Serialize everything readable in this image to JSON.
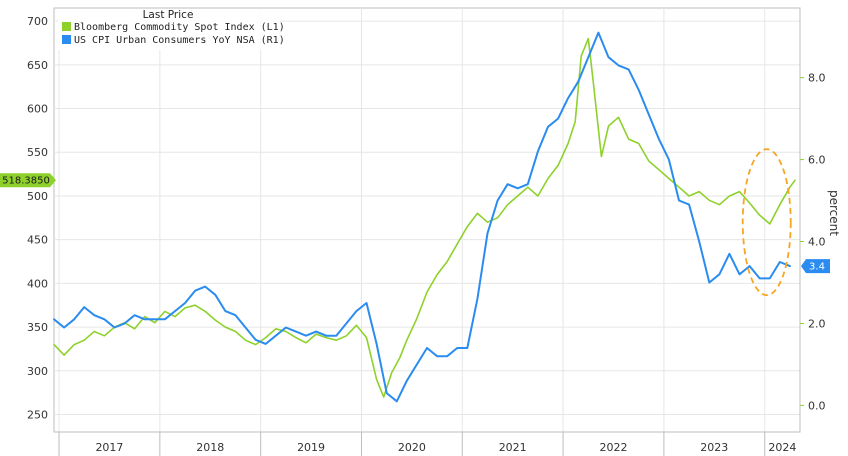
{
  "chart_data": {
    "type": "line",
    "legend": {
      "title": "Last Price",
      "placement": "top-left",
      "entries": [
        {
          "label": "Bloomberg Commodity Spot Index  (L1)",
          "color": "#8ed12a"
        },
        {
          "label": "US CPI Urban Consumers YoY NSA  (R1)",
          "color": "#2a8cf0"
        }
      ]
    },
    "x_labels": [
      "2017",
      "2018",
      "2019",
      "2020",
      "2021",
      "2022",
      "2023",
      "2024"
    ],
    "xlim": [
      2016.95,
      2024.35
    ],
    "left_axis": {
      "ticks": [
        250,
        300,
        350,
        400,
        450,
        500,
        550,
        600,
        650,
        700
      ],
      "ylim": [
        230,
        715
      ]
    },
    "right_axis": {
      "label": "percent",
      "ticks": [
        0.0,
        2.0,
        4.0,
        6.0,
        8.0
      ],
      "tick_labels": [
        "0.0",
        "2.0",
        "4.0",
        "6.0",
        "8.0"
      ],
      "ylim": [
        -0.65,
        9.7
      ]
    },
    "grid": true,
    "last_value_tags": {
      "left": "518.3850",
      "right": "3.4"
    },
    "series": [
      {
        "name": "Bloomberg Commodity Spot Index",
        "axis": "left",
        "color": "#8ed12a",
        "x": [
          2016.95,
          2017.05,
          2017.15,
          2017.25,
          2017.35,
          2017.45,
          2017.55,
          2017.65,
          2017.75,
          2017.85,
          2017.95,
          2018.05,
          2018.15,
          2018.25,
          2018.35,
          2018.45,
          2018.55,
          2018.65,
          2018.75,
          2018.85,
          2018.95,
          2019.05,
          2019.15,
          2019.25,
          2019.35,
          2019.45,
          2019.55,
          2019.65,
          2019.75,
          2019.85,
          2019.95,
          2020.05,
          2020.15,
          2020.22,
          2020.3,
          2020.38,
          2020.45,
          2020.55,
          2020.65,
          2020.75,
          2020.85,
          2020.95,
          2021.05,
          2021.15,
          2021.25,
          2021.35,
          2021.45,
          2021.55,
          2021.65,
          2021.75,
          2021.85,
          2021.95,
          2022.05,
          2022.12,
          2022.18,
          2022.25,
          2022.3,
          2022.38,
          2022.45,
          2022.55,
          2022.65,
          2022.75,
          2022.85,
          2022.95,
          2023.05,
          2023.15,
          2023.25,
          2023.35,
          2023.45,
          2023.55,
          2023.65,
          2023.75,
          2023.85,
          2023.95,
          2024.05,
          2024.15,
          2024.25,
          2024.3
        ],
        "y": [
          330,
          318,
          330,
          335,
          345,
          340,
          350,
          355,
          348,
          362,
          355,
          368,
          362,
          372,
          375,
          368,
          358,
          350,
          345,
          335,
          330,
          338,
          348,
          345,
          338,
          332,
          342,
          338,
          335,
          340,
          352,
          338,
          290,
          270,
          298,
          315,
          335,
          360,
          390,
          410,
          425,
          445,
          465,
          480,
          470,
          475,
          490,
          500,
          510,
          500,
          520,
          535,
          560,
          585,
          660,
          680,
          630,
          545,
          580,
          590,
          565,
          560,
          540,
          530,
          520,
          510,
          500,
          505,
          495,
          490,
          500,
          505,
          492,
          478,
          468,
          490,
          510,
          518
        ]
      },
      {
        "name": "US CPI Urban Consumers YoY NSA",
        "axis": "right",
        "color": "#2a8cf0",
        "x": [
          2016.95,
          2017.05,
          2017.15,
          2017.25,
          2017.35,
          2017.45,
          2017.55,
          2017.65,
          2017.75,
          2017.85,
          2017.95,
          2018.05,
          2018.15,
          2018.25,
          2018.35,
          2018.45,
          2018.55,
          2018.65,
          2018.75,
          2018.85,
          2018.95,
          2019.05,
          2019.15,
          2019.25,
          2019.35,
          2019.45,
          2019.55,
          2019.65,
          2019.75,
          2019.85,
          2019.95,
          2020.05,
          2020.15,
          2020.25,
          2020.35,
          2020.45,
          2020.55,
          2020.65,
          2020.75,
          2020.85,
          2020.95,
          2021.05,
          2021.15,
          2021.25,
          2021.35,
          2021.45,
          2021.55,
          2021.65,
          2021.75,
          2021.85,
          2021.95,
          2022.05,
          2022.15,
          2022.25,
          2022.35,
          2022.45,
          2022.55,
          2022.65,
          2022.75,
          2022.85,
          2022.95,
          2023.05,
          2023.15,
          2023.25,
          2023.35,
          2023.45,
          2023.55,
          2023.65,
          2023.75,
          2023.85,
          2023.95,
          2024.05,
          2024.15,
          2024.25
        ],
        "y": [
          2.1,
          1.9,
          2.1,
          2.4,
          2.2,
          2.1,
          1.9,
          2.0,
          2.2,
          2.1,
          2.1,
          2.1,
          2.3,
          2.5,
          2.8,
          2.9,
          2.7,
          2.3,
          2.2,
          1.9,
          1.6,
          1.5,
          1.7,
          1.9,
          1.8,
          1.7,
          1.8,
          1.7,
          1.7,
          2.0,
          2.3,
          2.5,
          1.5,
          0.3,
          0.1,
          0.6,
          1.0,
          1.4,
          1.2,
          1.2,
          1.4,
          1.4,
          2.6,
          4.2,
          5.0,
          5.4,
          5.3,
          5.4,
          6.2,
          6.8,
          7.0,
          7.5,
          7.9,
          8.5,
          9.1,
          8.5,
          8.3,
          8.2,
          7.7,
          7.1,
          6.5,
          6.0,
          5.0,
          4.9,
          4.0,
          3.0,
          3.2,
          3.7,
          3.2,
          3.4,
          3.1,
          3.1,
          3.5,
          3.4
        ]
      }
    ],
    "annotation": {
      "type": "dashed-ellipse",
      "color": "#f5a623"
    }
  }
}
